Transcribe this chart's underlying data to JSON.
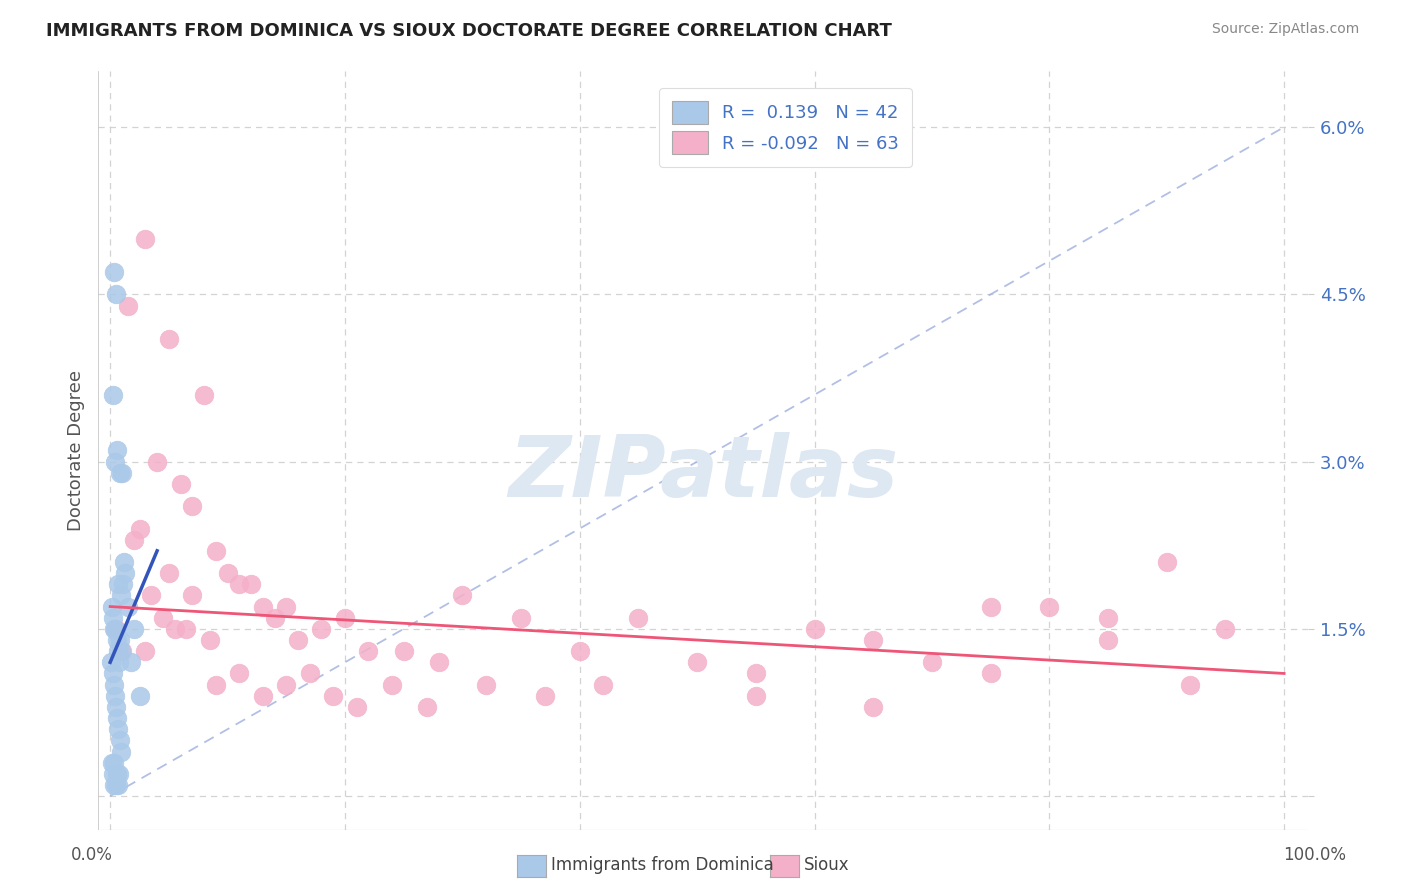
{
  "title": "IMMIGRANTS FROM DOMINICA VS SIOUX DOCTORATE DEGREE CORRELATION CHART",
  "source": "Source: ZipAtlas.com",
  "ylabel": "Doctorate Degree",
  "blue_color": "#aac8e8",
  "blue_edge_color": "#aac8e8",
  "pink_color": "#f4b0c8",
  "pink_edge_color": "#f4b0c8",
  "blue_line_color": "#3355bb",
  "pink_line_color": "#ee5577",
  "diag_line_color": "#99aadd",
  "background_color": "#ffffff",
  "grid_color": "#cccccc",
  "title_color": "#222222",
  "source_color": "#888888",
  "axis_label_color": "#555555",
  "right_tick_color": "#4472c4",
  "watermark_color": "#dde8f2",
  "legend_text_color": "#4472c4",
  "ytick_vals": [
    0.0,
    0.015,
    0.03,
    0.045,
    0.06
  ],
  "ytick_labels": [
    "",
    "1.5%",
    "3.0%",
    "4.5%",
    "6.0%"
  ],
  "xtick_vals": [
    0,
    20,
    40,
    60,
    80,
    100
  ],
  "xlim": [
    -1,
    102
  ],
  "ylim": [
    -0.003,
    0.065
  ],
  "blue_x": [
    0.3,
    0.5,
    0.6,
    0.8,
    1.0,
    0.4,
    0.2,
    0.7,
    0.9,
    1.2,
    0.15,
    0.25,
    0.35,
    0.45,
    0.55,
    0.65,
    0.75,
    0.85,
    0.95,
    1.1,
    1.3,
    0.1,
    0.2,
    0.3,
    0.4,
    0.5,
    0.6,
    0.7,
    0.8,
    0.9,
    0.15,
    0.25,
    0.35,
    0.55,
    0.65,
    0.75,
    1.5,
    2.0,
    2.5,
    1.8,
    0.3,
    0.5
  ],
  "blue_y": [
    0.047,
    0.045,
    0.031,
    0.029,
    0.029,
    0.03,
    0.036,
    0.019,
    0.018,
    0.021,
    0.017,
    0.016,
    0.015,
    0.015,
    0.014,
    0.013,
    0.012,
    0.014,
    0.013,
    0.019,
    0.02,
    0.012,
    0.011,
    0.01,
    0.009,
    0.008,
    0.007,
    0.006,
    0.005,
    0.004,
    0.003,
    0.002,
    0.003,
    0.002,
    0.001,
    0.002,
    0.017,
    0.015,
    0.009,
    0.012,
    0.001,
    0.001
  ],
  "pink_x": [
    3.0,
    1.5,
    5.0,
    8.0,
    4.0,
    6.0,
    7.0,
    9.0,
    10.0,
    12.0,
    15.0,
    3.5,
    4.5,
    5.5,
    6.5,
    8.5,
    11.0,
    13.0,
    14.0,
    16.0,
    18.0,
    20.0,
    22.0,
    25.0,
    28.0,
    30.0,
    35.0,
    40.0,
    45.0,
    50.0,
    55.0,
    60.0,
    65.0,
    70.0,
    75.0,
    80.0,
    85.0,
    90.0,
    95.0,
    2.0,
    3.0,
    5.0,
    7.0,
    9.0,
    11.0,
    13.0,
    15.0,
    17.0,
    19.0,
    21.0,
    24.0,
    27.0,
    32.0,
    37.0,
    42.0,
    55.0,
    65.0,
    75.0,
    85.0,
    92.0,
    0.5,
    1.0,
    2.5
  ],
  "pink_y": [
    0.05,
    0.044,
    0.041,
    0.036,
    0.03,
    0.028,
    0.026,
    0.022,
    0.02,
    0.019,
    0.017,
    0.018,
    0.016,
    0.015,
    0.015,
    0.014,
    0.019,
    0.017,
    0.016,
    0.014,
    0.015,
    0.016,
    0.013,
    0.013,
    0.012,
    0.018,
    0.016,
    0.013,
    0.016,
    0.012,
    0.011,
    0.015,
    0.014,
    0.012,
    0.011,
    0.017,
    0.016,
    0.021,
    0.015,
    0.023,
    0.013,
    0.02,
    0.018,
    0.01,
    0.011,
    0.009,
    0.01,
    0.011,
    0.009,
    0.008,
    0.01,
    0.008,
    0.01,
    0.009,
    0.01,
    0.009,
    0.008,
    0.017,
    0.014,
    0.01,
    0.015,
    0.013,
    0.024
  ],
  "blue_line_x": [
    0.0,
    4.0
  ],
  "blue_line_y": [
    0.012,
    0.022
  ],
  "pink_line_x": [
    0.0,
    100.0
  ],
  "pink_line_y": [
    0.017,
    0.011
  ]
}
